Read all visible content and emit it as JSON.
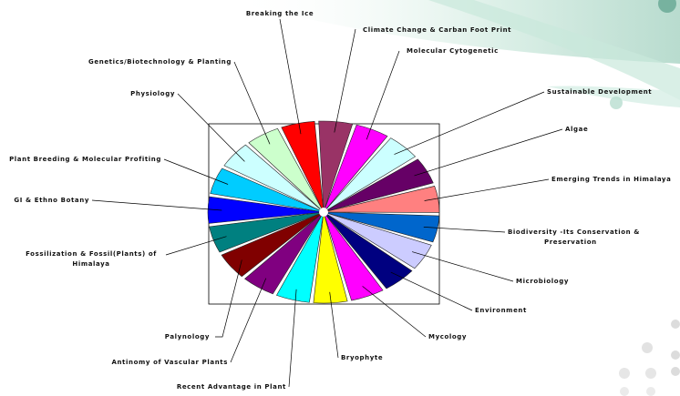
{
  "chart_data": {
    "type": "pie",
    "title": "",
    "legend": "none",
    "categories": [
      "Climate Change & Carban Foot Print",
      "Molecular Cytogenetic",
      "Sustainable Development",
      "Algae",
      "Emerging Trends in Himalaya",
      "Biodiversity -Its Conservation & Preservation",
      "Microbiology",
      "Environment",
      "Mycology",
      "Bryophyte",
      "Recent Advantage in Plant",
      "Antinomy of Vascular Plants",
      "Palynology",
      "Fossilization & Fossil(Plants) of Himalaya",
      "GI & Ethno Botany",
      "Plant Breeding & Molecular Profiting",
      "Physiology",
      "Genetics/Biotechnology & Planting",
      "Breaking the Ice"
    ],
    "values": [
      1,
      1,
      1,
      1,
      1,
      1,
      1,
      1,
      1,
      1,
      1,
      1,
      1,
      1,
      1,
      1,
      1,
      1,
      1
    ],
    "colors": [
      "#993366",
      "#ff00ff",
      "#ccffff",
      "#660066",
      "#ff8080",
      "#0066cc",
      "#ccccff",
      "#000080",
      "#ff00ff",
      "#ffff00",
      "#00ffff",
      "#800080",
      "#800000",
      "#008080",
      "#0000ff",
      "#00ccff",
      "#ccffff",
      "#ccffcc",
      "#ff0000"
    ]
  }
}
